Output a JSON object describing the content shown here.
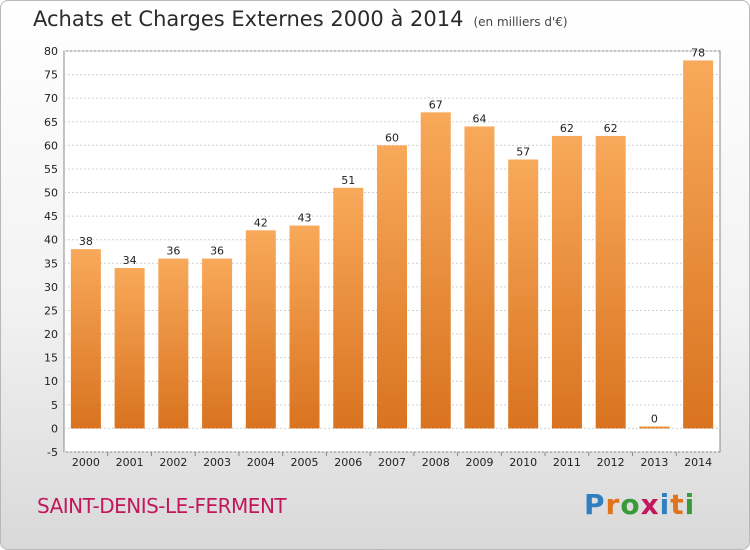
{
  "header": {
    "title": "Achats et Charges Externes 2000 à 2014",
    "subtitle": "(en milliers d'€)"
  },
  "footer": {
    "place": "SAINT-DENIS-LE-FERMENT",
    "brand": "Proxiti"
  },
  "colors": {
    "bar_top": "#f8a95a",
    "bar_bottom": "#d9731f",
    "place_text": "#c2185b"
  },
  "chart_data": {
    "type": "bar",
    "title": "Achats et Charges Externes 2000 à 2014",
    "subtitle": "(en milliers d'€)",
    "categories": [
      "2000",
      "2001",
      "2002",
      "2003",
      "2004",
      "2005",
      "2006",
      "2007",
      "2008",
      "2009",
      "2010",
      "2011",
      "2012",
      "2013",
      "2014"
    ],
    "values": [
      38,
      34,
      36,
      36,
      42,
      43,
      51,
      60,
      67,
      64,
      57,
      62,
      62,
      0,
      78
    ],
    "ylim": [
      -5,
      80
    ],
    "yticks": [
      -5,
      0,
      5,
      10,
      15,
      20,
      25,
      30,
      35,
      40,
      45,
      50,
      55,
      60,
      65,
      70,
      75,
      80
    ],
    "grid": true,
    "data_labels": true
  }
}
